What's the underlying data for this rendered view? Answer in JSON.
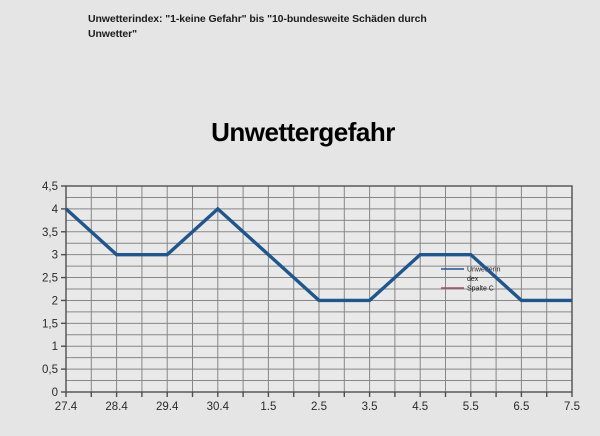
{
  "page": {
    "background": "#e5e5e5"
  },
  "header": {
    "line1": "Unwetterindex: \"1-keine Gefahr\" bis \"10-bundesweite Schäden durch",
    "line2": "Unwetter\""
  },
  "chart_data": {
    "type": "line",
    "title": "Unwettergefahr",
    "categories": [
      "27.4",
      "28.4",
      "29.4",
      "30.4",
      "1.5",
      "2.5",
      "3.5",
      "4.5",
      "5.5",
      "6.5",
      "7.5"
    ],
    "series": [
      {
        "name": "Unwetterindex",
        "legend_label_lines": [
          "Unwetterin",
          "dex"
        ],
        "color": "#21568C",
        "values": [
          4,
          3,
          3,
          4,
          3,
          2,
          2,
          3,
          3,
          2,
          2
        ]
      },
      {
        "name": "Spalte C",
        "legend_label_lines": [
          "Spalte C"
        ],
        "color": "#A64D62",
        "values": []
      }
    ],
    "ylim": [
      0,
      4.5
    ],
    "y_major_step": 0.5,
    "y_minor_step": 0.25,
    "y_tick_labels": [
      "0",
      "0,5",
      "1",
      "1,5",
      "2",
      "2,5",
      "3",
      "3,5",
      "4",
      "4,5"
    ],
    "xlabel": "",
    "ylabel": "",
    "grid": true,
    "legend_position": "inside-middle-right",
    "colors": {
      "grid": "#878787",
      "axis": "#4f4f4f",
      "tick_label": "#2a2a2a",
      "plot_wall": "#e9e9e9",
      "legend_text": "#1c1c1c"
    }
  }
}
